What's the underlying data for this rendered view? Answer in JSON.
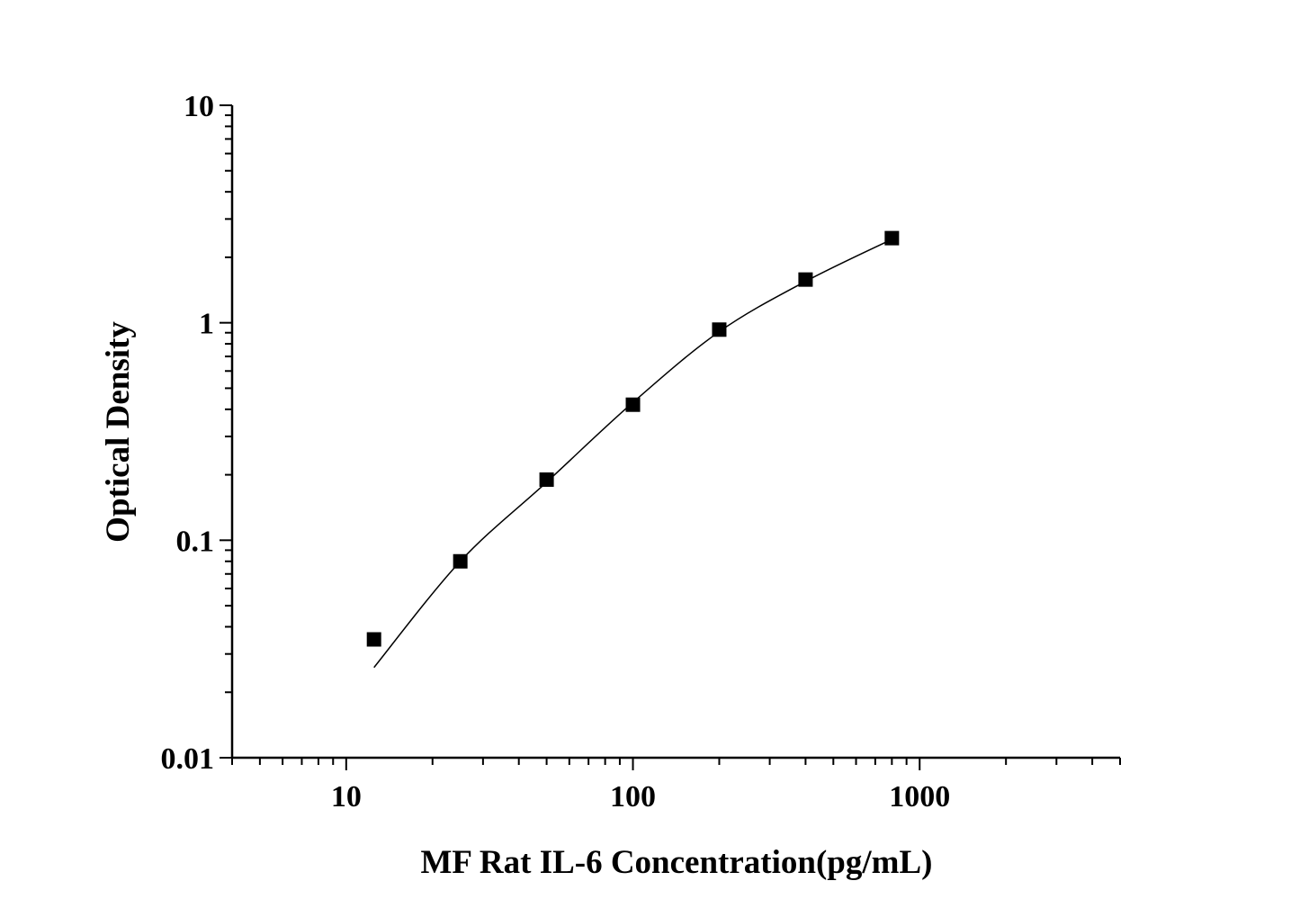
{
  "chart_data": {
    "type": "scatter",
    "title": "",
    "xlabel": "MF Rat IL-6 Concentration(pg/mL)",
    "ylabel": "Optical Density",
    "x_scale": "log",
    "y_scale": "log",
    "xlim": [
      4,
      5000
    ],
    "ylim": [
      0.01,
      10
    ],
    "x_ticks": [
      {
        "value": 10,
        "label": "10"
      },
      {
        "value": 100,
        "label": "100"
      },
      {
        "value": 1000,
        "label": "1000"
      }
    ],
    "y_ticks": [
      {
        "value": 0.01,
        "label": "0.01"
      },
      {
        "value": 0.1,
        "label": "0.1"
      },
      {
        "value": 1,
        "label": "1"
      },
      {
        "value": 10,
        "label": "10"
      }
    ],
    "grid": false,
    "legend": "none",
    "marker": "square",
    "color": "#000000",
    "series": [
      {
        "x": [
          12.5,
          25,
          50,
          100,
          200,
          400,
          800
        ],
        "y": [
          0.035,
          0.08,
          0.19,
          0.42,
          0.93,
          1.58,
          2.45
        ]
      }
    ],
    "fit_curve": {
      "x": [
        12.5,
        25,
        50,
        100,
        200,
        400,
        800
      ],
      "y": [
        0.026,
        0.08,
        0.185,
        0.43,
        0.91,
        1.55,
        2.42
      ]
    }
  }
}
